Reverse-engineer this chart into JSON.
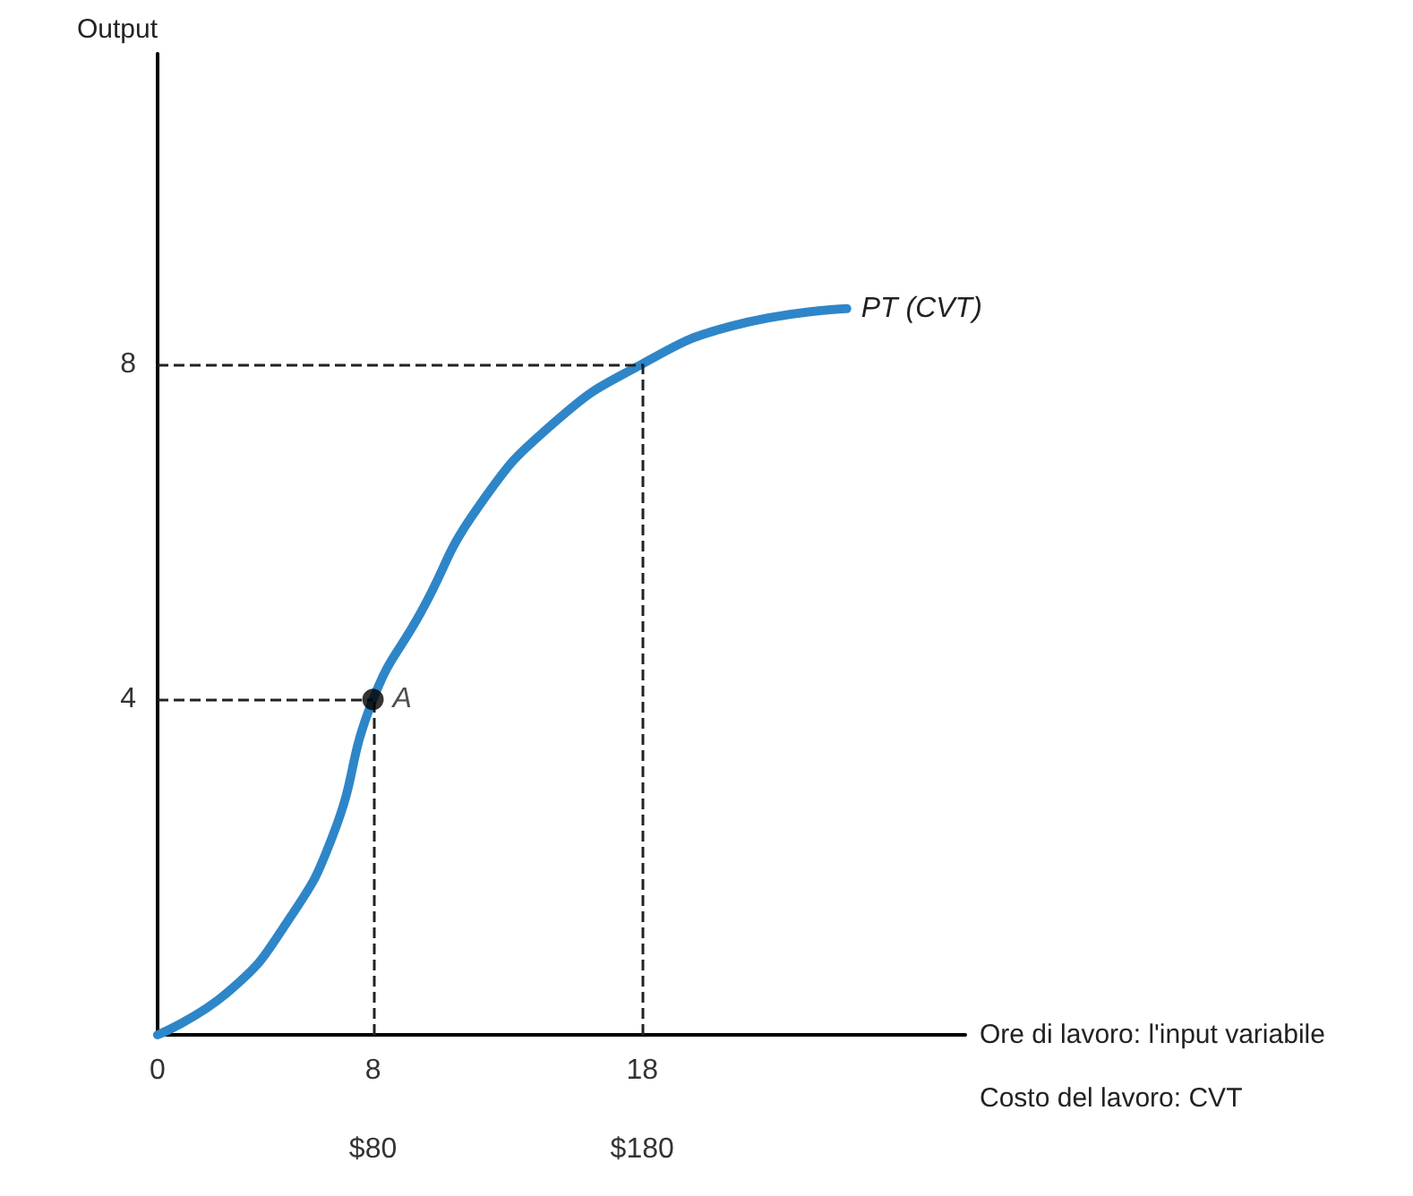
{
  "chart_data": {
    "type": "line",
    "xlabel": "Ore di lavoro: l'input variabile",
    "x2label": "Costo del lavoro: CVT",
    "ylabel": "Output",
    "xlim": [
      0,
      30
    ],
    "xticks": [
      0,
      8,
      18
    ],
    "x2lim": [
      0,
      300
    ],
    "x2ticks": [
      {
        "value": 80,
        "label": "$80"
      },
      {
        "value": 180,
        "label": "$180"
      }
    ],
    "ylim": [
      0,
      11.7
    ],
    "yticks": [
      4,
      8
    ],
    "grid": false,
    "series": [
      {
        "name": "PT (CVT)",
        "color": "#2e86c8",
        "marker": "none",
        "x": [
          0,
          2.65,
          4.8,
          6.5,
          8,
          9.8,
          11.9,
          14.8,
          18,
          21.3,
          25.6
        ],
        "values": [
          0,
          0.52,
          1.34,
          2.37,
          4,
          5.05,
          6.29,
          7.32,
          8,
          8.45,
          8.66
        ]
      },
      {
        "name": "A",
        "type": "scatter",
        "color": "#000000",
        "marker": "circle",
        "x": [
          8
        ],
        "values": [
          4
        ]
      }
    ],
    "ref_lines": [
      {
        "axis": "x",
        "value": 8,
        "color": "#222222",
        "line_style": "dashed"
      },
      {
        "axis": "x",
        "value": 18,
        "color": "#222222",
        "line_style": "dashed"
      },
      {
        "axis": "y",
        "value": 4,
        "color": "#222222",
        "line_style": "dashed"
      },
      {
        "axis": "y",
        "value": 8,
        "color": "#222222",
        "line_style": "dashed"
      }
    ]
  }
}
